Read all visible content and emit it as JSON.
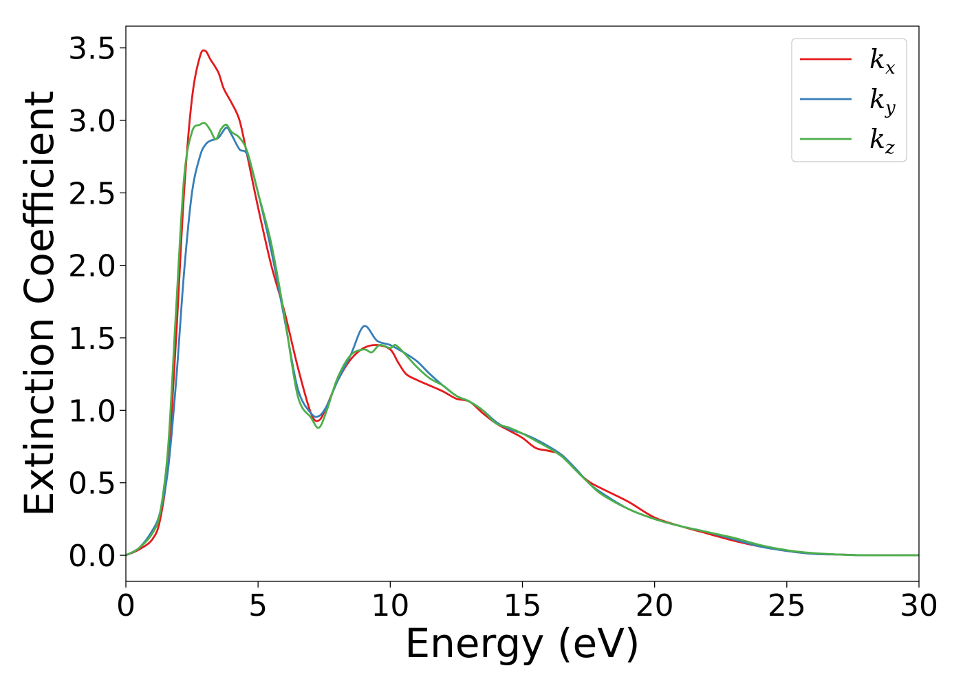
{
  "chart_data": {
    "type": "line",
    "title": "",
    "xlabel": "Energy (eV)",
    "ylabel": "Extinction Coefficient",
    "xlim": [
      0,
      30
    ],
    "ylim": [
      -0.18,
      3.65
    ],
    "xticks": [
      0,
      5,
      10,
      15,
      20,
      25,
      30
    ],
    "xtick_labels": [
      "0",
      "5",
      "10",
      "15",
      "20",
      "25",
      "30"
    ],
    "yticks": [
      0.0,
      0.5,
      1.0,
      1.5,
      2.0,
      2.5,
      3.0,
      3.5
    ],
    "ytick_labels": [
      "0.0",
      "0.5",
      "1.0",
      "1.5",
      "2.0",
      "2.5",
      "3.0",
      "3.5"
    ],
    "grid": false,
    "legend_position": "top-right",
    "series": [
      {
        "name": "k",
        "subscript": "x",
        "color": "#e41a1c",
        "x": [
          0,
          0.5,
          1.0,
          1.3,
          1.6,
          1.9,
          2.2,
          2.5,
          2.8,
          3.0,
          3.2,
          3.5,
          3.7,
          4.0,
          4.3,
          4.6,
          5.0,
          5.5,
          6.0,
          6.5,
          7.0,
          7.3,
          7.6,
          8.0,
          8.5,
          9.0,
          9.5,
          10.0,
          10.3,
          10.6,
          11.0,
          11.5,
          12.0,
          12.5,
          13.0,
          13.5,
          14.0,
          14.5,
          15.0,
          15.5,
          16.0,
          16.5,
          17.0,
          17.5,
          18.0,
          19.0,
          20.0,
          21.0,
          22.0,
          23.0,
          24.0,
          25.0,
          26.0,
          27.0,
          28.0,
          30.0
        ],
        "y": [
          0.0,
          0.04,
          0.11,
          0.25,
          0.65,
          1.5,
          2.5,
          3.15,
          3.44,
          3.48,
          3.42,
          3.33,
          3.22,
          3.12,
          3.0,
          2.75,
          2.4,
          2.0,
          1.68,
          1.3,
          0.98,
          0.93,
          1.03,
          1.2,
          1.35,
          1.43,
          1.45,
          1.42,
          1.33,
          1.25,
          1.21,
          1.17,
          1.13,
          1.08,
          1.06,
          0.98,
          0.91,
          0.86,
          0.81,
          0.74,
          0.72,
          0.69,
          0.59,
          0.51,
          0.46,
          0.37,
          0.26,
          0.2,
          0.15,
          0.1,
          0.06,
          0.03,
          0.01,
          0.005,
          0.0,
          0.0
        ]
      },
      {
        "name": "k",
        "subscript": "y",
        "color": "#377eb8",
        "x": [
          0,
          0.5,
          1.0,
          1.3,
          1.6,
          1.9,
          2.2,
          2.5,
          2.8,
          3.0,
          3.2,
          3.5,
          3.8,
          4.0,
          4.3,
          4.6,
          5.0,
          5.5,
          6.0,
          6.5,
          7.0,
          7.3,
          7.6,
          8.0,
          8.5,
          9.0,
          9.5,
          10.0,
          10.5,
          11.0,
          11.5,
          12.0,
          12.5,
          13.0,
          13.5,
          14.0,
          14.5,
          15.0,
          15.5,
          16.0,
          16.5,
          17.0,
          17.5,
          18.0,
          19.0,
          20.0,
          21.0,
          22.0,
          23.0,
          24.0,
          25.0,
          26.0,
          27.0,
          28.0,
          30.0
        ],
        "y": [
          0.0,
          0.05,
          0.17,
          0.3,
          0.6,
          1.2,
          1.95,
          2.5,
          2.75,
          2.83,
          2.86,
          2.88,
          2.95,
          2.9,
          2.8,
          2.76,
          2.5,
          2.1,
          1.63,
          1.15,
          0.98,
          0.96,
          1.03,
          1.2,
          1.38,
          1.58,
          1.48,
          1.45,
          1.4,
          1.34,
          1.25,
          1.17,
          1.1,
          1.06,
          1.0,
          0.92,
          0.87,
          0.84,
          0.8,
          0.75,
          0.69,
          0.6,
          0.5,
          0.43,
          0.32,
          0.25,
          0.2,
          0.16,
          0.11,
          0.06,
          0.03,
          0.01,
          0.005,
          0.0,
          0.0
        ]
      },
      {
        "name": "k",
        "subscript": "z",
        "color": "#4daf4a",
        "x": [
          0,
          0.5,
          1.0,
          1.3,
          1.6,
          1.9,
          2.2,
          2.5,
          2.8,
          3.0,
          3.2,
          3.4,
          3.6,
          3.8,
          4.0,
          4.3,
          4.6,
          5.0,
          5.5,
          6.0,
          6.5,
          7.0,
          7.3,
          7.6,
          8.0,
          8.5,
          9.0,
          9.3,
          9.6,
          10.0,
          10.2,
          10.5,
          11.0,
          11.5,
          12.0,
          12.5,
          13.0,
          13.5,
          14.0,
          14.5,
          15.0,
          15.5,
          16.0,
          16.5,
          17.0,
          17.5,
          18.0,
          19.0,
          20.0,
          21.0,
          22.0,
          23.0,
          24.0,
          25.0,
          26.0,
          27.0,
          28.0,
          30.0
        ],
        "y": [
          0.0,
          0.05,
          0.15,
          0.3,
          0.75,
          1.7,
          2.6,
          2.92,
          2.97,
          2.98,
          2.93,
          2.87,
          2.94,
          2.97,
          2.92,
          2.88,
          2.78,
          2.5,
          2.15,
          1.65,
          1.1,
          0.95,
          0.88,
          1.0,
          1.22,
          1.38,
          1.42,
          1.4,
          1.45,
          1.43,
          1.45,
          1.4,
          1.3,
          1.22,
          1.17,
          1.1,
          1.06,
          1.0,
          0.91,
          0.88,
          0.84,
          0.79,
          0.74,
          0.68,
          0.59,
          0.5,
          0.42,
          0.32,
          0.25,
          0.2,
          0.16,
          0.12,
          0.07,
          0.035,
          0.015,
          0.005,
          0.0,
          0.0
        ]
      }
    ]
  }
}
